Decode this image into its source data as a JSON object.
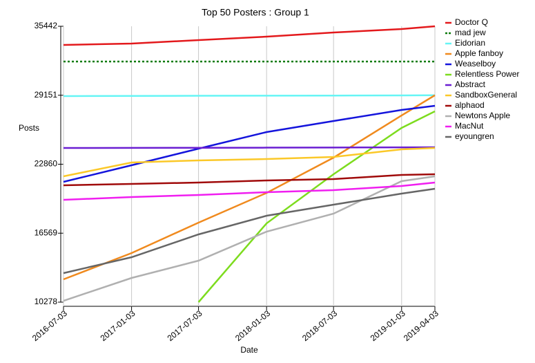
{
  "chart_data": {
    "type": "line",
    "title": "Top 50 Posters : Group 1",
    "x_label": "Date",
    "y_label": "Posts",
    "x": [
      "2016-07-03",
      "2017-01-03",
      "2017-07-03",
      "2018-01-03",
      "2018-07-03",
      "2019-01-03",
      "2019-04-03"
    ],
    "xlim": [
      "2016-07-03",
      "2019-04-03"
    ],
    "xticks": [
      "2016-07-03",
      "2017-01-03",
      "2017-07-03",
      "2018-01-03",
      "2018-07-03",
      "2019-01-03",
      "2019-04-03"
    ],
    "ylim": [
      10278,
      35442
    ],
    "yticks": [
      10278,
      16569,
      22860,
      29151,
      35442
    ],
    "grid": true,
    "series": [
      {
        "name": "Doctor Q",
        "color": "#e3191c",
        "values": [
          33739,
          33865,
          34181,
          34496,
          34874,
          35190,
          35442
        ]
      },
      {
        "name": "mad jew",
        "color": "#0b7a0b",
        "line_style": "dotted",
        "values": [
          32226,
          32226,
          32226,
          32226,
          32226,
          32226,
          32226
        ]
      },
      {
        "name": "Eidorian",
        "color": "#66f5f5",
        "values": [
          29072,
          29090,
          29100,
          29110,
          29120,
          29135,
          29151
        ]
      },
      {
        "name": "Apple fanboy",
        "color": "#f08a1e",
        "values": [
          12359,
          14756,
          17532,
          20244,
          23460,
          27307,
          29151
        ]
      },
      {
        "name": "Weaselboy",
        "color": "#1414dc",
        "values": [
          21252,
          22765,
          24279,
          25793,
          26802,
          27811,
          28190
        ]
      },
      {
        "name": "Relentless Power",
        "color": "#7ddc1e",
        "values": [
          null,
          null,
          10278,
          17468,
          21946,
          26171,
          27685
        ]
      },
      {
        "name": "Abstract",
        "color": "#6a1ed2",
        "values": [
          24342,
          24350,
          24360,
          24370,
          24385,
          24395,
          24405
        ]
      },
      {
        "name": "SandboxGeneral",
        "color": "#fbc828",
        "values": [
          21756,
          23018,
          23207,
          23333,
          23522,
          24216,
          24342
        ]
      },
      {
        "name": "alphaod",
        "color": "#a00a0a",
        "values": [
          20936,
          21062,
          21189,
          21378,
          21504,
          21882,
          21945
        ]
      },
      {
        "name": "Newtons Apple",
        "color": "#b0b0b0",
        "values": [
          10404,
          12485,
          14062,
          16711,
          18351,
          21315,
          21756
        ]
      },
      {
        "name": "MacNut",
        "color": "#f01ef0",
        "values": [
          19612,
          19865,
          20054,
          20306,
          20495,
          20873,
          21189
        ]
      },
      {
        "name": "eyoungren",
        "color": "#666666",
        "values": [
          12927,
          14377,
          16459,
          18161,
          19171,
          20180,
          20621
        ]
      }
    ]
  }
}
